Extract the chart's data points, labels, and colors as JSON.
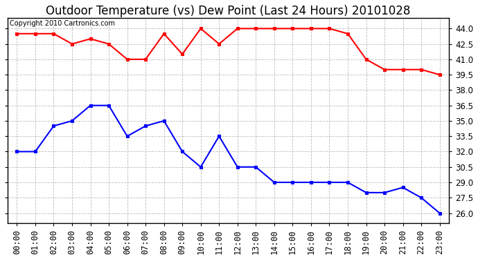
{
  "title": "Outdoor Temperature (vs) Dew Point (Last 24 Hours) 20101028",
  "copyright": "Copyright 2010 Cartronics.com",
  "hours": [
    "00:00",
    "01:00",
    "02:00",
    "03:00",
    "04:00",
    "05:00",
    "06:00",
    "07:00",
    "08:00",
    "09:00",
    "10:00",
    "11:00",
    "12:00",
    "13:00",
    "14:00",
    "15:00",
    "16:00",
    "17:00",
    "18:00",
    "19:00",
    "20:00",
    "21:00",
    "22:00",
    "23:00"
  ],
  "temp": [
    43.5,
    43.5,
    43.5,
    42.5,
    43.0,
    42.5,
    41.0,
    41.0,
    43.5,
    41.5,
    44.0,
    42.5,
    44.0,
    44.0,
    44.0,
    44.0,
    44.0,
    44.0,
    43.5,
    41.0,
    40.0,
    40.0,
    40.0,
    39.5
  ],
  "dew": [
    32.0,
    32.0,
    34.5,
    35.0,
    36.5,
    36.5,
    33.5,
    34.5,
    35.0,
    32.0,
    30.5,
    33.5,
    30.5,
    30.5,
    29.0,
    29.0,
    29.0,
    29.0,
    29.0,
    28.0,
    28.0,
    28.5,
    27.5,
    26.0
  ],
  "temp_color": "red",
  "dew_color": "blue",
  "bg_color": "#ffffff",
  "plot_bg_color": "#ffffff",
  "grid_color": "#aaaaaa",
  "ylim": [
    25.0,
    45.0
  ],
  "yticks": [
    26.0,
    27.5,
    29.0,
    30.5,
    32.0,
    33.5,
    35.0,
    36.5,
    38.0,
    39.5,
    41.0,
    42.5,
    44.0
  ],
  "title_fontsize": 12,
  "copyright_fontsize": 7,
  "tick_fontsize": 8.5
}
